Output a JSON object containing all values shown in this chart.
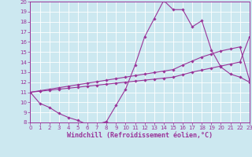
{
  "curve1_x": [
    0,
    1,
    2,
    3,
    4,
    5,
    6,
    7,
    8,
    9,
    10,
    11,
    12,
    13,
    14,
    15,
    16,
    17,
    18,
    19,
    20,
    21,
    22,
    23
  ],
  "curve1_y": [
    11.0,
    9.9,
    9.5,
    8.9,
    8.5,
    8.2,
    7.8,
    7.8,
    8.1,
    9.7,
    11.3,
    13.7,
    16.5,
    18.3,
    20.1,
    19.2,
    19.2,
    17.5,
    18.1,
    15.2,
    13.5,
    12.8,
    12.5,
    12.0
  ],
  "curve2_x": [
    0,
    1,
    2,
    3,
    4,
    5,
    6,
    7,
    8,
    9,
    10,
    11,
    12,
    13,
    14,
    15,
    16,
    17,
    18,
    19,
    20,
    21,
    22,
    23
  ],
  "curve2_y": [
    11.0,
    11.15,
    11.3,
    11.45,
    11.6,
    11.75,
    11.9,
    12.05,
    12.2,
    12.35,
    12.5,
    12.65,
    12.8,
    12.95,
    13.1,
    13.25,
    13.7,
    14.1,
    14.5,
    14.8,
    15.1,
    15.3,
    15.5,
    12.2
  ],
  "curve3_x": [
    0,
    1,
    2,
    3,
    4,
    5,
    6,
    7,
    8,
    9,
    10,
    11,
    12,
    13,
    14,
    15,
    16,
    17,
    18,
    19,
    20,
    21,
    22,
    23
  ],
  "curve3_y": [
    11.0,
    11.1,
    11.2,
    11.3,
    11.4,
    11.5,
    11.6,
    11.7,
    11.8,
    11.9,
    12.0,
    12.1,
    12.2,
    12.3,
    12.4,
    12.5,
    12.75,
    13.0,
    13.2,
    13.4,
    13.6,
    13.8,
    14.0,
    16.5
  ],
  "line_color": "#993399",
  "bg_color": "#cce8f0",
  "grid_color": "#ffffff",
  "xlabel": "Windchill (Refroidissement éolien,°C)",
  "xlim": [
    0,
    23
  ],
  "ylim": [
    8,
    20
  ],
  "xticks": [
    0,
    1,
    2,
    3,
    4,
    5,
    6,
    7,
    8,
    9,
    10,
    11,
    12,
    13,
    14,
    15,
    16,
    17,
    18,
    19,
    20,
    21,
    22,
    23
  ],
  "yticks": [
    8,
    9,
    10,
    11,
    12,
    13,
    14,
    15,
    16,
    17,
    18,
    19,
    20
  ],
  "tick_fontsize": 5.0,
  "xlabel_fontsize": 6.0,
  "marker": "D",
  "marker_size": 1.8,
  "linewidth": 0.8
}
